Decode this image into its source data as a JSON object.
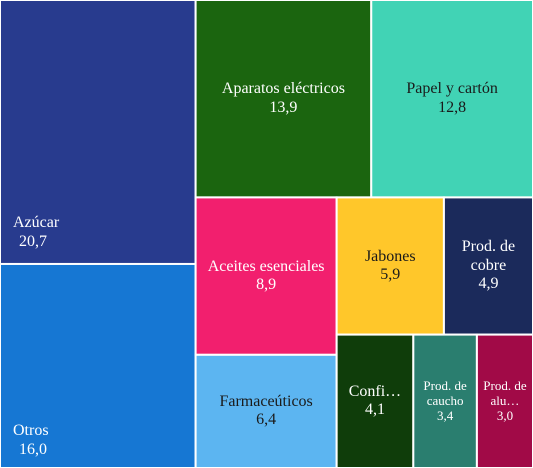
{
  "chart_data": {
    "type": "treemap",
    "categories": [
      "Azúcar",
      "Otros",
      "Aparatos eléctricos",
      "Papel y cartón",
      "Aceites esenciales",
      "Farmaceúticos",
      "Jabones",
      "Prod. de cobre",
      "Confi…",
      "Prod. de caucho",
      "Prod. de alu…"
    ],
    "values": [
      20.7,
      16.0,
      13.9,
      12.8,
      8.9,
      6.4,
      5.9,
      4.9,
      4.1,
      3.4,
      3.0
    ],
    "value_labels": [
      "20,7",
      "16,0",
      "13,9",
      "12,8",
      "8,9",
      "6,4",
      "5,9",
      "4,9",
      "4,1",
      "3,4",
      "3,0"
    ],
    "colors": [
      "#283b8e",
      "#1677d3",
      "#1b650f",
      "#41d3b5",
      "#f21f6e",
      "#5cb5f1",
      "#ffc72a",
      "#1b2a5b",
      "#0f3d0a",
      "#2a7e6f",
      "#a10a47"
    ]
  }
}
